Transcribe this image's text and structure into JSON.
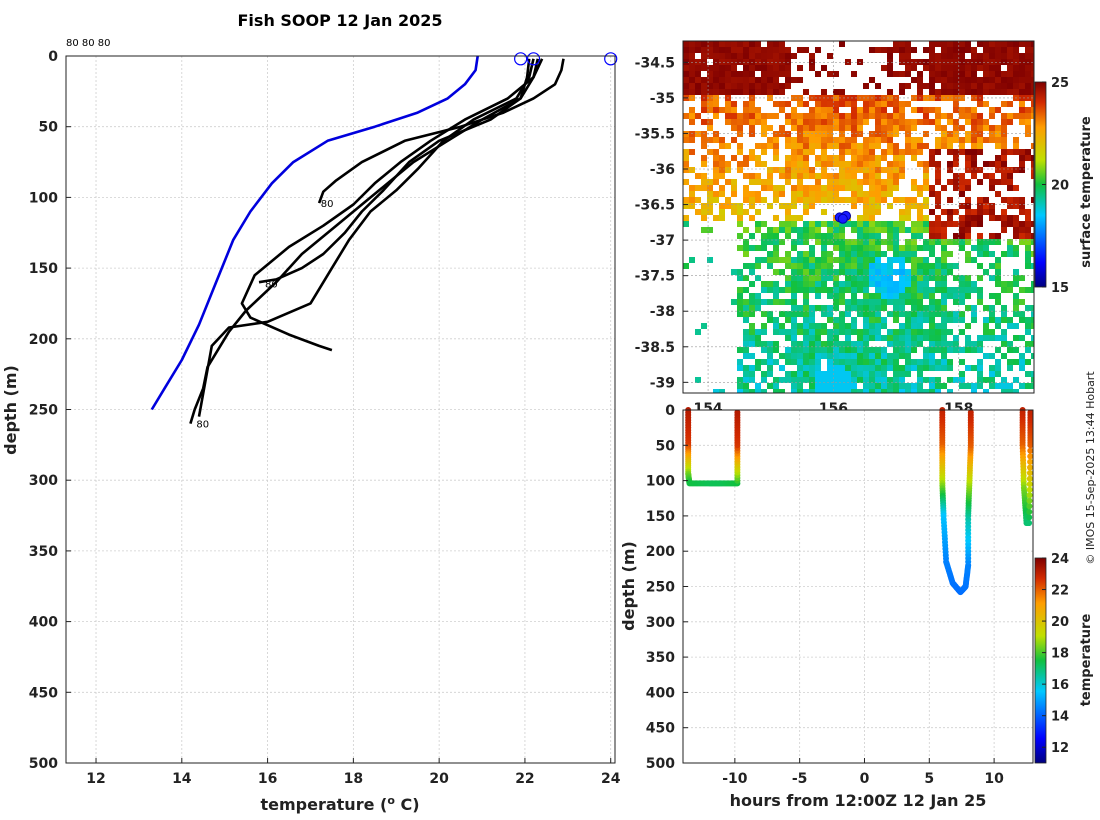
{
  "figure": {
    "title": "Fish SOOP 12 Jan 2025",
    "credit": "© IMOS 15-Sep-2025 13:44 Hobart",
    "top_note": "80 80 80"
  },
  "chart_data": [
    {
      "name": "temperature-profiles",
      "type": "line",
      "xlabel_pre": "temperature (",
      "xlabel_sup": "o",
      "xlabel_post": " C)",
      "ylabel": "depth (m)",
      "xlim": [
        11.3,
        24.1
      ],
      "ylim": [
        0,
        500
      ],
      "xticks": [
        "12",
        "14",
        "16",
        "18",
        "20",
        "22",
        "24"
      ],
      "yticks": [
        "0",
        "50",
        "100",
        "150",
        "200",
        "250",
        "300",
        "350",
        "400",
        "450",
        "500"
      ],
      "grid": true,
      "series": [
        {
          "name": "blue-reference",
          "color": "#0000dd",
          "x": [
            20.9,
            20.85,
            20.6,
            20.2,
            19.5,
            18.5,
            17.4,
            16.6,
            16.1,
            15.6,
            15.2,
            14.8,
            14.4,
            14.0,
            13.6,
            13.3
          ],
          "y": [
            0,
            10,
            20,
            30,
            40,
            50,
            60,
            75,
            90,
            110,
            130,
            160,
            190,
            215,
            235,
            250
          ]
        },
        {
          "name": "profile-1",
          "color": "#000000",
          "x": [
            22.9,
            22.85,
            22.7,
            22.2,
            21.5,
            20.5,
            19.2,
            18.2,
            17.6,
            17.3,
            17.2
          ],
          "y": [
            2,
            10,
            20,
            30,
            40,
            50,
            60,
            75,
            88,
            96,
            104
          ]
        },
        {
          "name": "profile-2",
          "color": "#000000",
          "x": [
            22.1,
            22.05,
            21.9,
            21.2,
            20.0,
            19.3,
            18.7,
            18.2,
            17.8,
            17.3,
            16.8,
            16.2,
            15.8
          ],
          "y": [
            2,
            15,
            30,
            45,
            60,
            75,
            95,
            110,
            125,
            140,
            150,
            158,
            160
          ]
        },
        {
          "name": "profile-3",
          "color": "#000000",
          "x": [
            22.3,
            22.2,
            21.9,
            21.0,
            20.2,
            19.4,
            18.8,
            18.2,
            17.6,
            16.8,
            16.2,
            15.5,
            15.1,
            14.8,
            14.6,
            14.5,
            14.3,
            14.2
          ],
          "y": [
            2,
            15,
            30,
            45,
            60,
            75,
            90,
            105,
            120,
            140,
            160,
            180,
            195,
            210,
            220,
            235,
            250,
            260
          ]
        },
        {
          "name": "profile-4",
          "color": "#000000",
          "x": [
            22.2,
            22.1,
            21.8,
            20.8,
            20.1,
            19.5,
            19.0,
            18.4,
            17.9,
            17.5,
            17.0,
            16.0,
            15.1,
            14.7,
            14.4
          ],
          "y": [
            2,
            15,
            30,
            45,
            60,
            80,
            95,
            110,
            130,
            150,
            175,
            188,
            192,
            205,
            255
          ]
        },
        {
          "name": "profile-5",
          "color": "#000000",
          "x": [
            22.4,
            22.2,
            21.6,
            20.6,
            19.8,
            19.1,
            18.5,
            18.0,
            17.3,
            16.5,
            15.7,
            15.4,
            15.6,
            16.5,
            17.2,
            17.5
          ],
          "y": [
            2,
            15,
            30,
            45,
            60,
            75,
            90,
            105,
            120,
            135,
            155,
            175,
            185,
            197,
            205,
            208
          ]
        }
      ],
      "markers": [
        {
          "name": "start-marker-1",
          "x": 21.9,
          "y": 2
        },
        {
          "name": "start-marker-2",
          "x": 22.2,
          "y": 2
        },
        {
          "name": "start-marker-3",
          "x": 24.0,
          "y": 2
        }
      ],
      "annotations": [
        {
          "text": "80",
          "x": 17.1,
          "y": 104
        },
        {
          "text": "80",
          "x": 15.8,
          "y": 161
        },
        {
          "text": "80",
          "x": 14.2,
          "y": 260
        }
      ]
    },
    {
      "name": "surface-temperature-map",
      "type": "heatmap",
      "colorbar_label": "surface temperature",
      "colorbar_ticks": [
        "25",
        "20",
        "15"
      ],
      "clim": [
        15,
        25
      ],
      "xlim": [
        153.6,
        159.2
      ],
      "ylim": [
        -39.15,
        -34.2
      ],
      "xticks": [
        "154",
        "156",
        "158"
      ],
      "yticks": [
        "-34.5",
        "-35",
        "-35.5",
        "-36",
        "-36.5",
        "-37",
        "-37.5",
        "-38",
        "-38.5",
        "-39"
      ],
      "ship_positions": [
        {
          "lon": 156.1,
          "lat": -36.68
        },
        {
          "lon": 156.2,
          "lat": -36.66
        },
        {
          "lon": 156.15,
          "lat": -36.7
        }
      ]
    },
    {
      "name": "depth-time-section",
      "type": "scatter",
      "xlabel": "hours from 12:00Z 12 Jan 25",
      "ylabel": "depth (m)",
      "colorbar_label": "temperature",
      "colorbar_ticks": [
        "24",
        "22",
        "20",
        "18",
        "16",
        "14",
        "12"
      ],
      "clim": [
        11,
        24
      ],
      "xlim": [
        -14,
        13
      ],
      "ylim": [
        0,
        500
      ],
      "xticks": [
        "-10",
        "-5",
        "0",
        "5",
        "10"
      ],
      "yticks": [
        "0",
        "50",
        "100",
        "150",
        "200",
        "250",
        "300",
        "350",
        "400",
        "450",
        "500"
      ],
      "casts": [
        {
          "name": "cast-1",
          "x": [
            -13.6,
            -13.6,
            -13.6,
            -13.5,
            -12.0,
            -11.0,
            -9.8,
            -9.8,
            -9.8
          ],
          "y": [
            0,
            50,
            90,
            104,
            104,
            104,
            104,
            50,
            0
          ],
          "t": [
            23.2,
            22.5,
            18.5,
            17.5,
            17.3,
            17.3,
            17.5,
            22.5,
            23.2
          ]
        },
        {
          "name": "cast-2",
          "x": [
            6.0,
            6.0,
            6.0,
            6.1,
            6.3,
            6.8,
            7.4,
            7.8,
            8.0,
            8.0,
            8.1,
            8.2,
            8.2
          ],
          "y": [
            0,
            50,
            100,
            150,
            215,
            245,
            258,
            250,
            220,
            150,
            100,
            50,
            0
          ],
          "t": [
            23.0,
            22.0,
            19.0,
            15.5,
            14.5,
            14.3,
            14.2,
            14.3,
            14.5,
            16.5,
            19.0,
            22.0,
            23.0
          ]
        },
        {
          "name": "cast-3",
          "x": [
            12.2,
            12.2,
            12.3,
            12.5,
            12.7,
            12.8,
            12.8
          ],
          "y": [
            0,
            50,
            110,
            160,
            160,
            50,
            0
          ],
          "t": [
            23.0,
            22.0,
            18.5,
            17.0,
            17.0,
            22.0,
            23.0
          ]
        }
      ]
    }
  ]
}
